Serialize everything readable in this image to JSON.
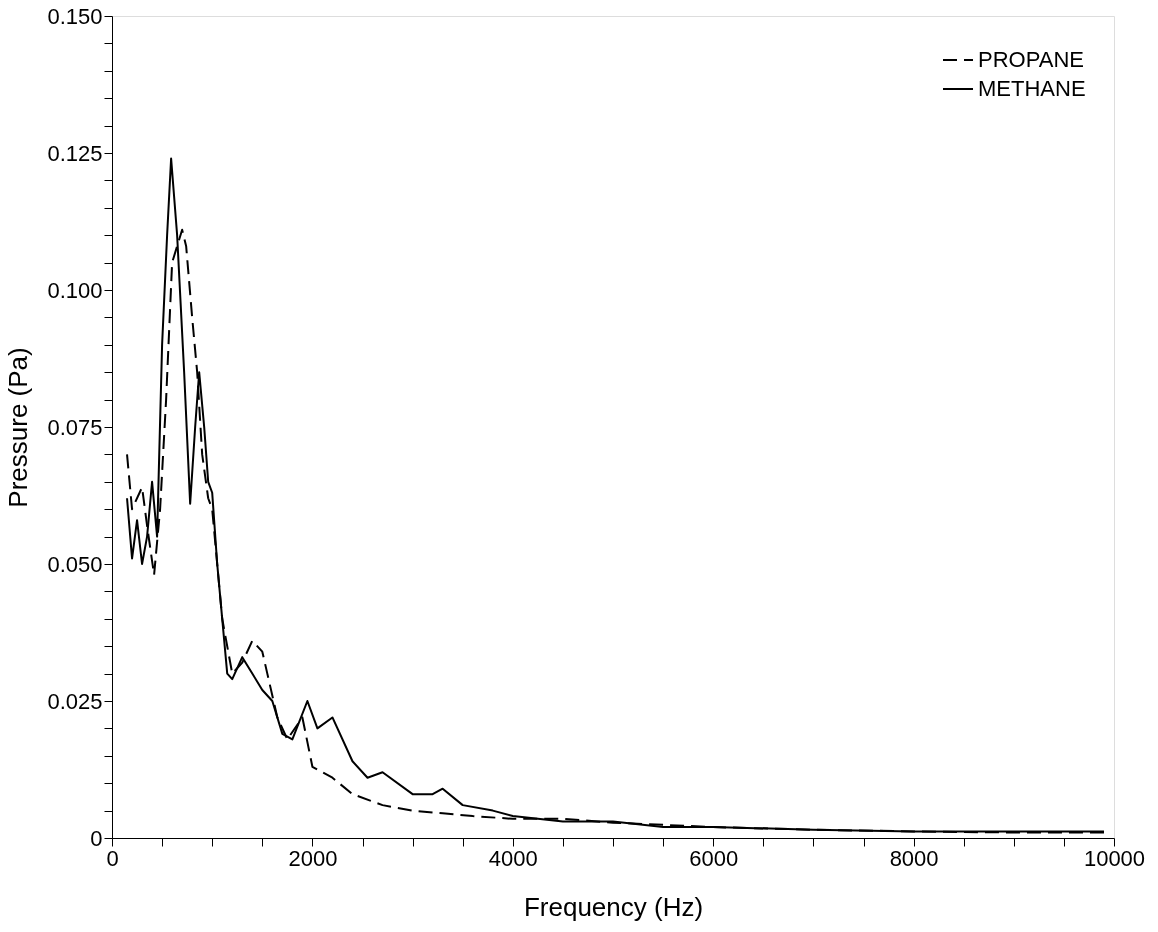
{
  "chart_data": {
    "type": "line",
    "xlabel": "Frequency (Hz)",
    "ylabel": "Pressure (Pa)",
    "xlim": [
      0,
      10000
    ],
    "ylim": [
      0,
      0.15
    ],
    "xticks": [
      0,
      {
        "value": 500,
        "label": null
      },
      {
        "value": 1000,
        "label": null
      },
      {
        "value": 1500,
        "label": null
      },
      2000,
      {
        "value": 2500,
        "label": null
      },
      {
        "value": 3000,
        "label": null
      },
      {
        "value": 3500,
        "label": null
      },
      4000,
      {
        "value": 4500,
        "label": null
      },
      {
        "value": 5000,
        "label": null
      },
      {
        "value": 5500,
        "label": null
      },
      6000,
      {
        "value": 6500,
        "label": null
      },
      {
        "value": 7000,
        "label": null
      },
      {
        "value": 7500,
        "label": null
      },
      8000,
      {
        "value": 8500,
        "label": null
      },
      {
        "value": 9000,
        "label": null
      },
      {
        "value": 9500,
        "label": null
      },
      10000
    ],
    "yticks": [
      0,
      {
        "value": 0.005,
        "label": null
      },
      {
        "value": 0.01,
        "label": null
      },
      {
        "value": 0.015,
        "label": null
      },
      {
        "value": 0.02,
        "label": null
      },
      0.025,
      {
        "value": 0.03,
        "label": null
      },
      {
        "value": 0.035,
        "label": null
      },
      {
        "value": 0.04,
        "label": null
      },
      {
        "value": 0.045,
        "label": null
      },
      {
        "value": 0.05,
        "label": "0.050"
      },
      {
        "value": 0.055,
        "label": null
      },
      {
        "value": 0.06,
        "label": null
      },
      {
        "value": 0.065,
        "label": null
      },
      {
        "value": 0.07,
        "label": null
      },
      0.075,
      {
        "value": 0.08,
        "label": null
      },
      {
        "value": 0.085,
        "label": null
      },
      {
        "value": 0.09,
        "label": null
      },
      {
        "value": 0.095,
        "label": null
      },
      {
        "value": 0.1,
        "label": "0.100"
      },
      {
        "value": 0.105,
        "label": null
      },
      {
        "value": 0.11,
        "label": null
      },
      {
        "value": 0.115,
        "label": null
      },
      {
        "value": 0.12,
        "label": null
      },
      0.125,
      {
        "value": 0.13,
        "label": null
      },
      {
        "value": 0.135,
        "label": null
      },
      {
        "value": 0.14,
        "label": null
      },
      {
        "value": 0.145,
        "label": null
      },
      {
        "value": 0.15,
        "label": "0.150"
      }
    ],
    "grid": false,
    "legend": "top right",
    "marker": "none",
    "series": [
      {
        "name": "PROPANE",
        "color": "#000000",
        "line_style": "dashed",
        "x": [
          150,
          200,
          300,
          350,
          420,
          480,
          540,
          600,
          650,
          700,
          740,
          800,
          850,
          900,
          960,
          1000,
          1100,
          1200,
          1300,
          1400,
          1500,
          1550,
          1650,
          1750,
          1900,
          2000,
          2200,
          2400,
          2700,
          3000,
          3300,
          3600,
          4000,
          4500,
          5000,
          6000,
          7000,
          8000,
          9000,
          9900
        ],
        "values": [
          0.07,
          0.06,
          0.064,
          0.057,
          0.048,
          0.06,
          0.08,
          0.105,
          0.108,
          0.111,
          0.108,
          0.095,
          0.085,
          0.07,
          0.062,
          0.06,
          0.04,
          0.03,
          0.032,
          0.036,
          0.034,
          0.03,
          0.022,
          0.018,
          0.022,
          0.013,
          0.011,
          0.008,
          0.006,
          0.005,
          0.0045,
          0.004,
          0.0035,
          0.0035,
          0.0028,
          0.002,
          0.0015,
          0.0012,
          0.001,
          0.001
        ]
      },
      {
        "name": "METHANE",
        "color": "#000000",
        "line_style": "solid",
        "x": [
          150,
          200,
          250,
          300,
          350,
          400,
          450,
          500,
          550,
          590,
          650,
          720,
          780,
          830,
          870,
          920,
          960,
          1000,
          1050,
          1100,
          1150,
          1200,
          1300,
          1400,
          1500,
          1600,
          1700,
          1800,
          1950,
          2050,
          2200,
          2400,
          2550,
          2700,
          3000,
          3200,
          3300,
          3500,
          3800,
          4000,
          4500,
          5000,
          5500,
          6000,
          7000,
          8000,
          9000,
          9900
        ],
        "values": [
          0.062,
          0.051,
          0.058,
          0.05,
          0.055,
          0.065,
          0.055,
          0.09,
          0.11,
          0.124,
          0.11,
          0.085,
          0.061,
          0.075,
          0.085,
          0.075,
          0.065,
          0.063,
          0.05,
          0.04,
          0.03,
          0.029,
          0.033,
          0.03,
          0.027,
          0.025,
          0.019,
          0.018,
          0.025,
          0.02,
          0.022,
          0.014,
          0.011,
          0.012,
          0.008,
          0.008,
          0.009,
          0.006,
          0.005,
          0.004,
          0.003,
          0.003,
          0.002,
          0.002,
          0.0015,
          0.0012,
          0.0012,
          0.0012
        ]
      }
    ]
  }
}
